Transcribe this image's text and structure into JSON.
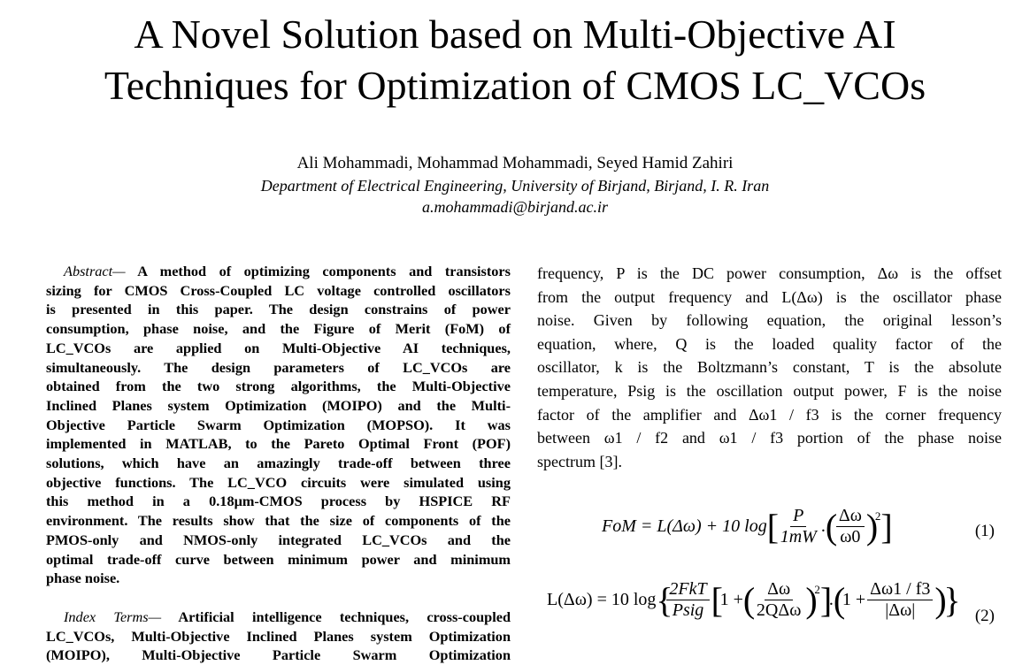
{
  "title": [
    "A Novel Solution based on Multi-Objective AI",
    "Techniques for Optimization of CMOS LC_VCOs"
  ],
  "authors": "Ali Mohammadi, Mohammad Mohammadi, Seyed Hamid Zahiri",
  "affiliation": "Department of Electrical Engineering, University of Birjand, Birjand, I. R. Iran",
  "email": "a.mohammadi@birjand.ac.ir",
  "abstract": {
    "label": "Abstract—",
    "lines": [
      "A method of optimizing components and transistors",
      "sizing for CMOS Cross-Coupled LC voltage controlled oscillators",
      "is presented in this paper. The design constrains of power",
      "consumption, phase noise, and the Figure of Merit (FoM) of",
      "LC_VCOs are applied on Multi-Objective AI techniques,",
      "simultaneously. The design parameters of LC_VCOs are",
      "obtained from the two strong algorithms, the Multi-Objective",
      "Inclined Planes system Optimization (MOIPO) and the Multi-",
      "Objective Particle Swarm Optimization (MOPSO). It was",
      "implemented in MATLAB, to the Pareto Optimal Front (POF)",
      "solutions, which have an amazingly trade-off between three",
      "objective functions. The LC_VCO circuits were simulated using",
      "this method in a 0.18μm-CMOS process by HSPICE RF",
      "environment. The results show that the size of components of the",
      "PMOS-only and NMOS-only integrated LC_VCOs and the",
      "optimal trade-off curve between minimum power and minimum",
      "phase noise."
    ]
  },
  "index_terms": {
    "label": "Index Terms—",
    "lines": [
      "Artificial intelligence techniques, cross-coupled",
      "LC_VCOs, Multi-Objective Inclined Planes system Optimization",
      "(MOIPO), Multi-Objective Particle Swarm Optimization"
    ]
  },
  "right_lines": [
    "frequency, P is the DC power consumption, Δω  is the offset",
    "from the output frequency and  L(Δω)  is the oscillator phase",
    "noise. Given by following equation, the original lesson’s",
    "equation, where, Q is the loaded quality factor of the",
    "oscillator, k is the Boltzmann’s constant, T is the absolute",
    "temperature, Psig is the oscillation output power, F is the noise",
    "factor of the amplifier and  Δω1 / f3  is the corner frequency",
    "between  ω1 / f2  and  ω1 / f3  portion of the phase noise",
    "spectrum [3]."
  ],
  "equations": {
    "eq1": {
      "lhs": "FoM = L(Δω) + 10 log",
      "num1": "P",
      "den1": "1mW",
      "num2": "Δω",
      "den2": "ω0",
      "exp": "2",
      "number": "(1)"
    },
    "eq2": {
      "lhs": "L(Δω) = 10 log",
      "num1": "2FkT",
      "den1": "Psig",
      "one": "1 +",
      "num2": "Δω",
      "den2": "2QΔω",
      "exp": "2",
      "num3": "Δω1 / f3",
      "den3": "|Δω|",
      "number": "(2)"
    }
  }
}
